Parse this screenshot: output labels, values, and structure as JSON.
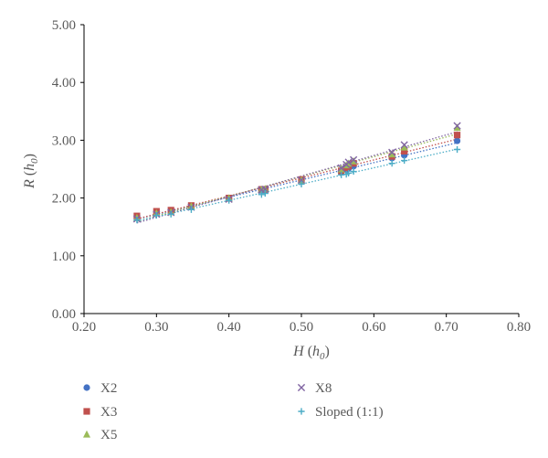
{
  "chart_data": {
    "type": "scatter",
    "title": "",
    "xlabel": {
      "main": "H",
      "paren_open": " (",
      "sub_base": "h",
      "sub": "0",
      "paren_close": ")"
    },
    "ylabel": {
      "main": "R",
      "paren_open": " (",
      "sub_base": "h",
      "sub": "0",
      "paren_close": ")"
    },
    "xlim": [
      0.2,
      0.8
    ],
    "ylim": [
      0.0,
      5.0
    ],
    "x_ticks": [
      "0.20",
      "0.30",
      "0.40",
      "0.50",
      "0.60",
      "0.70",
      "0.80"
    ],
    "y_ticks": [
      "0.00",
      "1.00",
      "2.00",
      "3.00",
      "4.00",
      "5.00"
    ],
    "grid": false,
    "legend_position": "bottom",
    "trendlines": "dotted linear per series",
    "series": [
      {
        "name": "X2",
        "marker": "circle",
        "color": "#4472C4",
        "points": [
          [
            0.273,
            1.66
          ],
          [
            0.3,
            1.75
          ],
          [
            0.32,
            1.77
          ],
          [
            0.348,
            1.86
          ],
          [
            0.4,
            1.99
          ],
          [
            0.445,
            2.13
          ],
          [
            0.45,
            2.14
          ],
          [
            0.5,
            2.3
          ],
          [
            0.555,
            2.45
          ],
          [
            0.562,
            2.49
          ],
          [
            0.565,
            2.51
          ],
          [
            0.572,
            2.55
          ],
          [
            0.625,
            2.69
          ],
          [
            0.642,
            2.74
          ],
          [
            0.715,
            2.99
          ]
        ]
      },
      {
        "name": "X3",
        "marker": "square",
        "color": "#C0504D",
        "points": [
          [
            0.273,
            1.69
          ],
          [
            0.3,
            1.77
          ],
          [
            0.32,
            1.79
          ],
          [
            0.348,
            1.87
          ],
          [
            0.4,
            2.0
          ],
          [
            0.445,
            2.15
          ],
          [
            0.45,
            2.15
          ],
          [
            0.5,
            2.32
          ],
          [
            0.555,
            2.47
          ],
          [
            0.562,
            2.52
          ],
          [
            0.565,
            2.55
          ],
          [
            0.572,
            2.6
          ],
          [
            0.625,
            2.72
          ],
          [
            0.642,
            2.81
          ],
          [
            0.715,
            3.09
          ]
        ]
      },
      {
        "name": "X5",
        "marker": "triangle",
        "color": "#9BBB59",
        "points": [
          [
            0.273,
            1.66
          ],
          [
            0.3,
            1.74
          ],
          [
            0.32,
            1.76
          ],
          [
            0.348,
            1.86
          ],
          [
            0.4,
            2.0
          ],
          [
            0.445,
            2.15
          ],
          [
            0.45,
            2.16
          ],
          [
            0.5,
            2.31
          ],
          [
            0.555,
            2.5
          ],
          [
            0.562,
            2.57
          ],
          [
            0.565,
            2.6
          ],
          [
            0.572,
            2.64
          ],
          [
            0.625,
            2.76
          ],
          [
            0.642,
            2.88
          ],
          [
            0.715,
            3.22
          ]
        ]
      },
      {
        "name": "X8",
        "marker": "x",
        "color": "#8064A2",
        "points": [
          [
            0.273,
            1.64
          ],
          [
            0.3,
            1.72
          ],
          [
            0.32,
            1.75
          ],
          [
            0.348,
            1.84
          ],
          [
            0.4,
            1.98
          ],
          [
            0.445,
            2.14
          ],
          [
            0.45,
            2.15
          ],
          [
            0.5,
            2.31
          ],
          [
            0.555,
            2.52
          ],
          [
            0.562,
            2.58
          ],
          [
            0.565,
            2.62
          ],
          [
            0.572,
            2.66
          ],
          [
            0.625,
            2.79
          ],
          [
            0.642,
            2.92
          ],
          [
            0.715,
            3.25
          ]
        ]
      },
      {
        "name": "Sloped (1:1)",
        "marker": "plus",
        "color": "#4BACC6",
        "points": [
          [
            0.273,
            1.62
          ],
          [
            0.3,
            1.7
          ],
          [
            0.32,
            1.72
          ],
          [
            0.348,
            1.8
          ],
          [
            0.4,
            1.96
          ],
          [
            0.445,
            2.06
          ],
          [
            0.45,
            2.08
          ],
          [
            0.5,
            2.24
          ],
          [
            0.555,
            2.4
          ],
          [
            0.562,
            2.41
          ],
          [
            0.565,
            2.43
          ],
          [
            0.572,
            2.46
          ],
          [
            0.625,
            2.6
          ],
          [
            0.642,
            2.65
          ],
          [
            0.715,
            2.84
          ]
        ]
      }
    ]
  }
}
